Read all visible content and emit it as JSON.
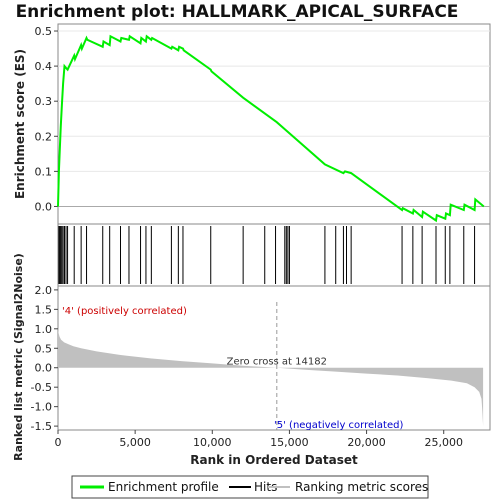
{
  "chart_data": {
    "type": "line",
    "title": "Enrichment plot: HALLMARK_APICAL_SURFACE",
    "es_panel": {
      "ylabel": "Enrichment score (ES)",
      "ylim": [
        -0.05,
        0.52
      ],
      "yticks": [
        "0.0",
        "0.1",
        "0.2",
        "0.3",
        "0.4",
        "0.5"
      ],
      "ytick_values": [
        0.0,
        0.1,
        0.2,
        0.3,
        0.4,
        0.5
      ],
      "series": [
        {
          "name": "Enrichment profile",
          "color": "#00ee00",
          "x": [
            0,
            60,
            120,
            180,
            250,
            330,
            420,
            520,
            620,
            1050,
            1100,
            1500,
            1550,
            1850,
            1900,
            2900,
            2950,
            3350,
            3400,
            4050,
            4100,
            4600,
            4650,
            5350,
            5400,
            5700,
            5750,
            6050,
            6100,
            7350,
            7400,
            7800,
            7850,
            8100,
            8150,
            9900,
            9950,
            12000,
            14182,
            17300,
            18500,
            18600,
            19000,
            22300,
            22350,
            23000,
            23050,
            23600,
            23650,
            24500,
            24550,
            25100,
            25150,
            25400,
            25450,
            26300,
            26350,
            27000,
            27050,
            27600
          ],
          "y": [
            0.0,
            0.1,
            0.17,
            0.23,
            0.29,
            0.35,
            0.4,
            0.395,
            0.39,
            0.43,
            0.42,
            0.46,
            0.45,
            0.48,
            0.475,
            0.455,
            0.47,
            0.46,
            0.485,
            0.47,
            0.48,
            0.475,
            0.485,
            0.465,
            0.48,
            0.47,
            0.485,
            0.475,
            0.48,
            0.45,
            0.455,
            0.445,
            0.455,
            0.45,
            0.445,
            0.39,
            0.385,
            0.31,
            0.24,
            0.12,
            0.095,
            0.1,
            0.095,
            -0.01,
            -0.005,
            -0.02,
            -0.01,
            -0.03,
            -0.015,
            -0.04,
            -0.025,
            -0.035,
            -0.02,
            -0.025,
            0.005,
            -0.01,
            0.005,
            -0.01,
            0.02,
            0.0
          ]
        }
      ]
    },
    "hits": {
      "name": "Hits",
      "color": "#000000",
      "positions": [
        60,
        120,
        180,
        250,
        330,
        420,
        520,
        620,
        1050,
        1500,
        1850,
        2900,
        3350,
        4050,
        4600,
        5350,
        5700,
        6050,
        7350,
        7800,
        8100,
        9900,
        12000,
        13400,
        14100,
        14700,
        14800,
        14900,
        15000,
        17300,
        18000,
        18500,
        18700,
        19000,
        22300,
        23000,
        23600,
        24500,
        25100,
        25400,
        26300,
        27000
      ]
    },
    "rank_panel": {
      "ylabel": "Ranked list metric (Signal2Noise)",
      "xlabel": "Rank in Ordered Dataset",
      "ylim": [
        -1.6,
        2.1
      ],
      "yticks": [
        "-1.5",
        "-1.0",
        "-0.5",
        "0.0",
        "0.5",
        "1.0",
        "1.5",
        "2.0"
      ],
      "ytick_values": [
        -1.5,
        -1.0,
        -0.5,
        0.0,
        0.5,
        1.0,
        1.5,
        2.0
      ],
      "xlim": [
        0,
        28000
      ],
      "xticks": [
        "0",
        "5,000",
        "10,000",
        "15,000",
        "20,000",
        "25,000"
      ],
      "xtick_values": [
        0,
        5000,
        10000,
        15000,
        20000,
        25000
      ],
      "series": [
        {
          "name": "Ranking metric scores",
          "color": "#c0c0c0",
          "x": [
            0,
            30,
            100,
            200,
            400,
            700,
            1000,
            1500,
            2500,
            4000,
            6000,
            8000,
            10000,
            12000,
            14182,
            16000,
            18000,
            20000,
            22000,
            24000,
            25500,
            26500,
            27000,
            27300,
            27450,
            27500,
            27550
          ],
          "y": [
            1.05,
            0.9,
            0.8,
            0.72,
            0.65,
            0.6,
            0.55,
            0.5,
            0.42,
            0.33,
            0.24,
            0.17,
            0.11,
            0.05,
            0.0,
            -0.05,
            -0.1,
            -0.15,
            -0.2,
            -0.27,
            -0.33,
            -0.4,
            -0.5,
            -0.62,
            -0.8,
            -1.1,
            -1.5
          ]
        }
      ],
      "zero_cross_label": "Zero cross at 14182",
      "zero_cross_rank": 14182,
      "positive_label": "'4' (positively correlated)",
      "negative_label": "'5' (negatively correlated)"
    },
    "heat_strip": {
      "segments": [
        {
          "from": 0,
          "to": 1800,
          "color": "#ff0000"
        },
        {
          "from": 1800,
          "to": 7000,
          "color": "#ff4444"
        },
        {
          "from": 7000,
          "to": 10300,
          "color": "#ff7777"
        },
        {
          "from": 10300,
          "to": 12500,
          "color": "#ffaaee"
        },
        {
          "from": 12500,
          "to": 14182,
          "color": "#ffccee"
        },
        {
          "from": 14182,
          "to": 17200,
          "color": "#ddddff"
        },
        {
          "from": 17200,
          "to": 20200,
          "color": "#bbbbff"
        },
        {
          "from": 20200,
          "to": 22200,
          "color": "#7777ff"
        },
        {
          "from": 22200,
          "to": 26000,
          "color": "#3333ff"
        },
        {
          "from": 26000,
          "to": 27600,
          "color": "#0000cc"
        }
      ]
    },
    "legend": [
      {
        "label": "Enrichment profile",
        "color": "#00ee00"
      },
      {
        "label": "Hits",
        "color": "#000000"
      },
      {
        "label": "Ranking metric scores",
        "color": "#c0c0c0"
      }
    ]
  }
}
